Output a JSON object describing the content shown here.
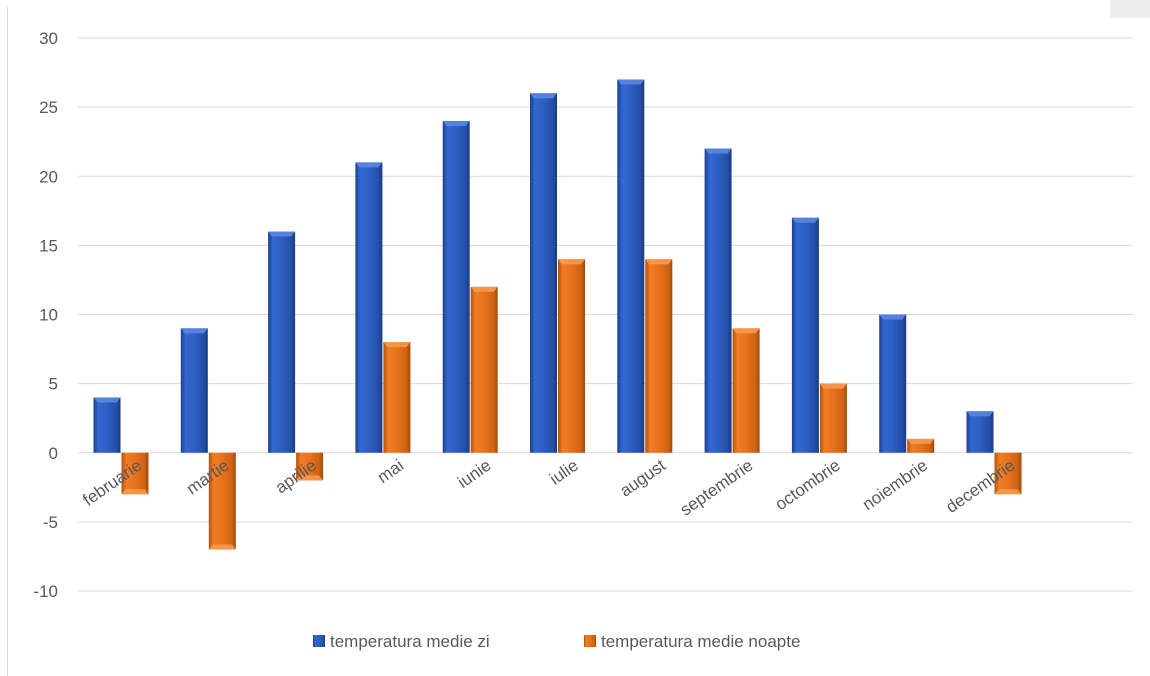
{
  "chart_data": {
    "type": "bar",
    "title": "",
    "xlabel": "",
    "ylabel": "",
    "categories": [
      "februarie",
      "martie",
      "aprilie",
      "mai",
      "iunie",
      "iulie",
      "august",
      "septembrie",
      "octombrie",
      "noiembrie",
      "decembrie"
    ],
    "series": [
      {
        "name": "temperatura medie zi",
        "color": "#2e5fc4",
        "values": [
          4,
          9,
          16,
          21,
          24,
          26,
          27,
          22,
          17,
          10,
          3
        ]
      },
      {
        "name": "temperatura medie noapte",
        "color": "#e8721c",
        "values": [
          -3,
          -7,
          -2,
          8,
          12,
          14,
          14,
          9,
          5,
          1,
          -3
        ]
      }
    ],
    "ylim": [
      -10,
      30
    ],
    "yticks": [
      30,
      25,
      20,
      15,
      10,
      5,
      0,
      -5,
      -10
    ],
    "grid": true,
    "legend_position": "bottom",
    "bar_style": "3d-beveled"
  }
}
